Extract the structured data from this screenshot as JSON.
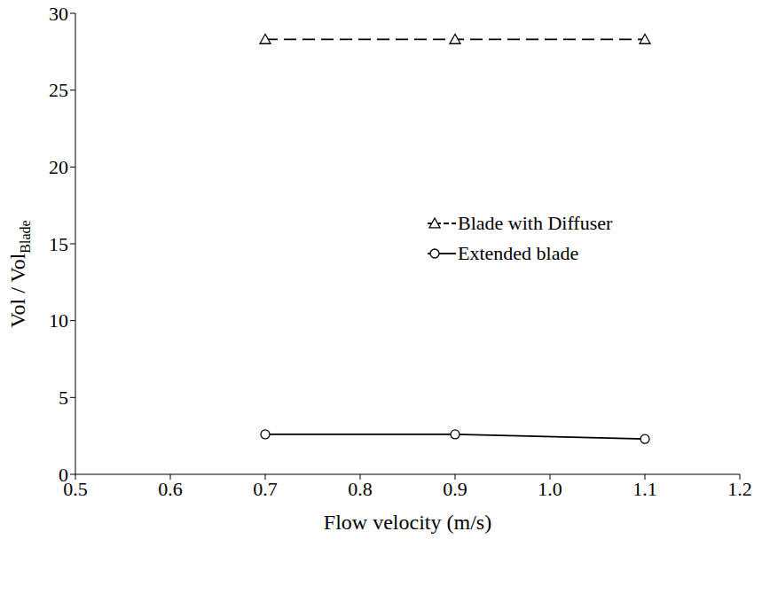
{
  "chart_data": {
    "type": "line",
    "x_label": "Flow velocity (m/s)",
    "y_label": "Vol / Vol",
    "y_label_subscript": "Blade",
    "xlim": [
      0.5,
      1.2
    ],
    "xticks": [
      0.5,
      0.6,
      0.7,
      0.8,
      0.9,
      {
        "value": 1,
        "label": "1.0"
      },
      1.1,
      1.2
    ],
    "ylim": [
      0,
      30
    ],
    "yticks": [
      0,
      5,
      10,
      15,
      20,
      25,
      30
    ],
    "grid": false,
    "legend": "right",
    "series": [
      {
        "name": "Blade with Diffuser",
        "color": "#000000",
        "marker": "triangle",
        "line_style": "dashed",
        "x": [
          0.7,
          0.9,
          1.1
        ],
        "values": [
          28.3,
          28.3,
          28.3
        ]
      },
      {
        "name": "Extended blade",
        "color": "#000000",
        "marker": "circle",
        "line_style": "solid",
        "x": [
          0.7,
          0.9,
          1.1
        ],
        "values": [
          2.6,
          2.6,
          2.3
        ]
      }
    ]
  }
}
